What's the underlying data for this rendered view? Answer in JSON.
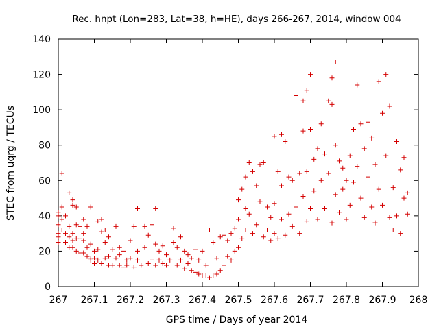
{
  "chart_data": {
    "type": "scatter",
    "title": "Rec. hnpt (Lon=283, Lat=38, h=HE), days 266-267, 2014, window 004",
    "xlabel": "GPS time / Days of year 2014",
    "ylabel": "STEC from uqrg / TECUs",
    "xlim": [
      267,
      268
    ],
    "ylim": [
      0,
      140
    ],
    "xticks": [
      267,
      267.1,
      267.2,
      267.3,
      267.4,
      267.5,
      267.6,
      267.7,
      267.8,
      267.9,
      268
    ],
    "xtick_labels": [
      "267",
      "267.1",
      "267.2",
      "267.3",
      "267.4",
      "267.5",
      "267.6",
      "267.7",
      "267.8",
      "267.9",
      "268"
    ],
    "yticks": [
      0,
      20,
      40,
      60,
      80,
      100,
      120,
      140
    ],
    "ytick_labels": [
      "0",
      "20",
      "40",
      "60",
      "80",
      "100",
      "120",
      "140"
    ],
    "grid": false,
    "marker": "+",
    "color": "#d40000",
    "series": [
      {
        "points": [
          [
            267.0,
            25
          ],
          [
            267.0,
            30
          ],
          [
            267.0,
            35
          ],
          [
            267.0,
            40
          ],
          [
            267.0,
            42
          ],
          [
            267.0,
            28
          ],
          [
            267.01,
            64
          ],
          [
            267.01,
            45
          ],
          [
            267.01,
            38
          ],
          [
            267.01,
            32
          ],
          [
            267.02,
            25
          ],
          [
            267.02,
            40
          ],
          [
            267.02,
            30
          ],
          [
            267.03,
            53
          ],
          [
            267.03,
            28
          ],
          [
            267.03,
            22
          ],
          [
            267.03,
            34
          ],
          [
            267.04,
            49
          ],
          [
            267.04,
            46
          ],
          [
            267.04,
            22
          ],
          [
            267.04,
            26
          ],
          [
            267.04,
            30
          ],
          [
            267.05,
            45
          ],
          [
            267.05,
            35
          ],
          [
            267.05,
            27
          ],
          [
            267.05,
            20
          ],
          [
            267.06,
            34
          ],
          [
            267.06,
            27
          ],
          [
            267.06,
            19
          ],
          [
            267.07,
            30
          ],
          [
            267.07,
            26
          ],
          [
            267.07,
            19
          ],
          [
            267.07,
            38
          ],
          [
            267.08,
            17
          ],
          [
            267.08,
            34
          ],
          [
            267.08,
            22
          ],
          [
            267.09,
            45
          ],
          [
            267.09,
            24
          ],
          [
            267.09,
            16
          ],
          [
            267.09,
            15
          ],
          [
            267.1,
            20
          ],
          [
            267.1,
            16
          ],
          [
            267.1,
            13
          ],
          [
            267.11,
            37
          ],
          [
            267.11,
            21
          ],
          [
            267.11,
            15
          ],
          [
            267.12,
            38
          ],
          [
            267.12,
            13
          ],
          [
            267.12,
            31
          ],
          [
            267.13,
            16
          ],
          [
            267.13,
            25
          ],
          [
            267.13,
            32
          ],
          [
            267.14,
            17
          ],
          [
            267.14,
            12
          ],
          [
            267.14,
            28
          ],
          [
            267.15,
            21
          ],
          [
            267.15,
            12
          ],
          [
            267.16,
            34
          ],
          [
            267.16,
            16
          ],
          [
            267.17,
            22
          ],
          [
            267.17,
            12
          ],
          [
            267.17,
            18
          ],
          [
            267.18,
            11
          ],
          [
            267.18,
            20
          ],
          [
            267.19,
            15
          ],
          [
            267.19,
            12
          ],
          [
            267.2,
            26
          ],
          [
            267.2,
            16
          ],
          [
            267.21,
            34
          ],
          [
            267.21,
            11
          ],
          [
            267.22,
            44
          ],
          [
            267.22,
            20
          ],
          [
            267.22,
            15
          ],
          [
            267.23,
            12
          ],
          [
            267.24,
            34
          ],
          [
            267.24,
            22
          ],
          [
            267.25,
            13
          ],
          [
            267.25,
            29
          ],
          [
            267.26,
            35
          ],
          [
            267.26,
            15
          ],
          [
            267.27,
            44
          ],
          [
            267.27,
            12
          ],
          [
            267.27,
            24
          ],
          [
            267.28,
            15
          ],
          [
            267.28,
            20
          ],
          [
            267.29,
            13
          ],
          [
            267.29,
            23
          ],
          [
            267.3,
            18
          ],
          [
            267.3,
            12
          ],
          [
            267.31,
            15
          ],
          [
            267.32,
            33
          ],
          [
            267.32,
            25
          ],
          [
            267.33,
            12
          ],
          [
            267.33,
            22
          ],
          [
            267.34,
            15
          ],
          [
            267.34,
            28
          ],
          [
            267.35,
            10
          ],
          [
            267.35,
            20
          ],
          [
            267.36,
            13
          ],
          [
            267.36,
            18
          ],
          [
            267.37,
            9
          ],
          [
            267.37,
            16
          ],
          [
            267.38,
            8
          ],
          [
            267.38,
            21
          ],
          [
            267.39,
            7
          ],
          [
            267.39,
            15
          ],
          [
            267.4,
            6
          ],
          [
            267.4,
            20
          ],
          [
            267.41,
            6
          ],
          [
            267.41,
            12
          ],
          [
            267.42,
            5
          ],
          [
            267.42,
            32
          ],
          [
            267.43,
            6
          ],
          [
            267.43,
            25
          ],
          [
            267.44,
            7
          ],
          [
            267.44,
            16
          ],
          [
            267.45,
            9
          ],
          [
            267.45,
            28
          ],
          [
            267.46,
            12
          ],
          [
            267.46,
            29
          ],
          [
            267.47,
            17
          ],
          [
            267.47,
            26
          ],
          [
            267.48,
            15
          ],
          [
            267.48,
            30
          ],
          [
            267.49,
            20
          ],
          [
            267.49,
            33
          ],
          [
            267.5,
            22
          ],
          [
            267.5,
            49
          ],
          [
            267.5,
            38
          ],
          [
            267.51,
            55
          ],
          [
            267.51,
            27
          ],
          [
            267.52,
            62
          ],
          [
            267.52,
            44
          ],
          [
            267.52,
            32
          ],
          [
            267.53,
            70
          ],
          [
            267.53,
            41
          ],
          [
            267.54,
            65
          ],
          [
            267.54,
            30
          ],
          [
            267.55,
            57
          ],
          [
            267.55,
            35
          ],
          [
            267.56,
            69
          ],
          [
            267.56,
            48
          ],
          [
            267.57,
            70
          ],
          [
            267.57,
            28
          ],
          [
            267.58,
            45
          ],
          [
            267.58,
            32
          ],
          [
            267.59,
            39
          ],
          [
            267.59,
            26
          ],
          [
            267.6,
            85
          ],
          [
            267.6,
            47
          ],
          [
            267.6,
            30
          ],
          [
            267.61,
            65
          ],
          [
            267.61,
            27
          ],
          [
            267.62,
            86
          ],
          [
            267.62,
            57
          ],
          [
            267.62,
            38
          ],
          [
            267.63,
            82
          ],
          [
            267.63,
            29
          ],
          [
            267.64,
            62
          ],
          [
            267.64,
            41
          ],
          [
            267.65,
            60
          ],
          [
            267.65,
            34
          ],
          [
            267.66,
            108
          ],
          [
            267.66,
            45
          ],
          [
            267.67,
            64
          ],
          [
            267.67,
            30
          ],
          [
            267.68,
            105
          ],
          [
            267.68,
            88
          ],
          [
            267.68,
            51
          ],
          [
            267.69,
            111
          ],
          [
            267.69,
            65
          ],
          [
            267.69,
            37
          ],
          [
            267.7,
            89
          ],
          [
            267.7,
            120
          ],
          [
            267.7,
            44
          ],
          [
            267.71,
            72
          ],
          [
            267.71,
            54
          ],
          [
            267.72,
            78
          ],
          [
            267.72,
            38
          ],
          [
            267.73,
            92
          ],
          [
            267.73,
            60
          ],
          [
            267.74,
            75
          ],
          [
            267.74,
            44
          ],
          [
            267.75,
            105
          ],
          [
            267.75,
            64
          ],
          [
            267.76,
            103
          ],
          [
            267.76,
            118
          ],
          [
            267.76,
            36
          ],
          [
            267.77,
            127
          ],
          [
            267.77,
            80
          ],
          [
            267.77,
            52
          ],
          [
            267.78,
            71
          ],
          [
            267.78,
            42
          ],
          [
            267.79,
            67
          ],
          [
            267.79,
            55
          ],
          [
            267.8,
            60
          ],
          [
            267.8,
            38
          ],
          [
            267.81,
            74
          ],
          [
            267.81,
            46
          ],
          [
            267.82,
            89
          ],
          [
            267.82,
            59
          ],
          [
            267.83,
            114
          ],
          [
            267.83,
            68
          ],
          [
            267.84,
            92
          ],
          [
            267.84,
            50
          ],
          [
            267.85,
            78
          ],
          [
            267.85,
            39
          ],
          [
            267.86,
            93
          ],
          [
            267.86,
            62
          ],
          [
            267.87,
            84
          ],
          [
            267.87,
            45
          ],
          [
            267.88,
            69
          ],
          [
            267.88,
            36
          ],
          [
            267.89,
            116
          ],
          [
            267.89,
            55
          ],
          [
            267.9,
            98
          ],
          [
            267.9,
            46
          ],
          [
            267.91,
            120
          ],
          [
            267.91,
            74
          ],
          [
            267.92,
            102
          ],
          [
            267.92,
            39
          ],
          [
            267.93,
            56
          ],
          [
            267.93,
            32
          ],
          [
            267.94,
            82
          ],
          [
            267.94,
            40
          ],
          [
            267.95,
            66
          ],
          [
            267.95,
            30
          ],
          [
            267.96,
            73
          ],
          [
            267.96,
            50
          ],
          [
            267.97,
            41
          ],
          [
            267.97,
            53
          ]
        ]
      }
    ]
  }
}
